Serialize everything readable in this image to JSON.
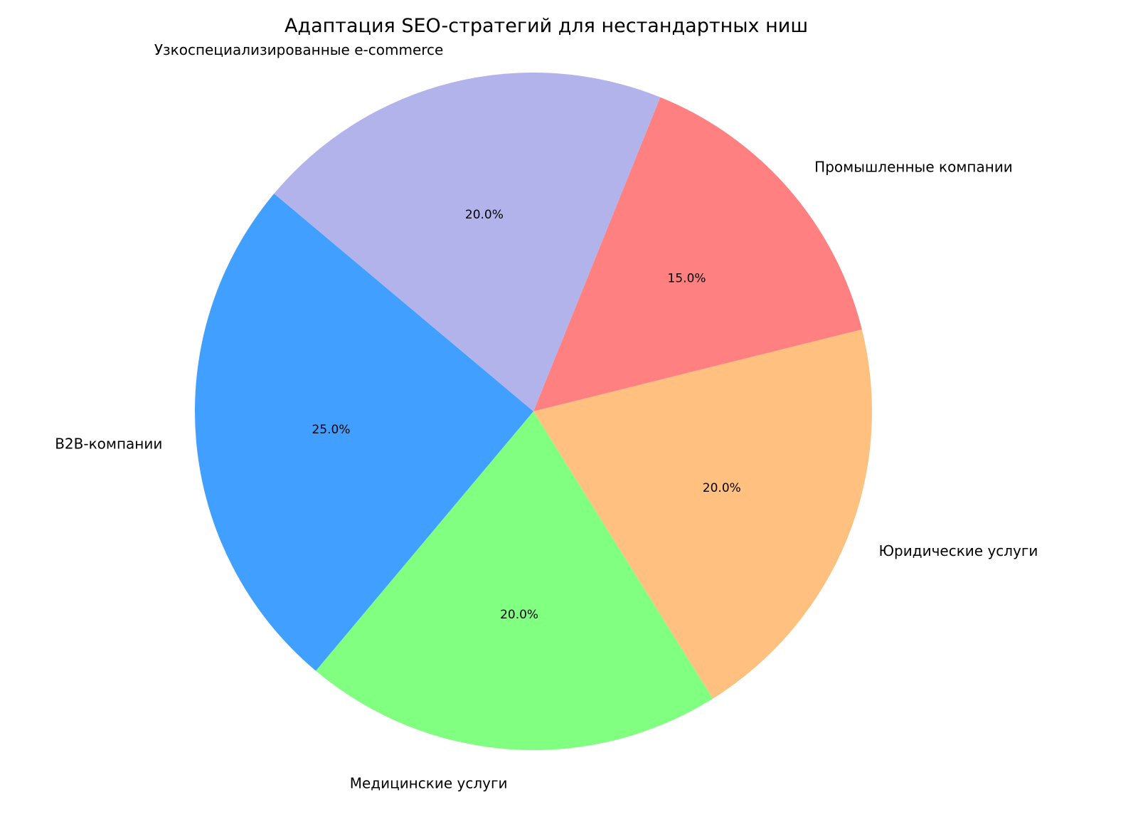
{
  "chart_data": {
    "type": "pie",
    "title": "Адаптация SEO-стратегий для нестандартных ниш",
    "categories": [
      "B2B-компании",
      "Медицинские услуги",
      "Юридические услуги",
      "Промышленные компании",
      "Узкоспециализированные e-commerce"
    ],
    "values": [
      25,
      20,
      20,
      15,
      20
    ],
    "percent_labels": [
      "25.0%",
      "20.0%",
      "20.0%",
      "15.0%",
      "20.0%"
    ],
    "colors": [
      "#409FFF",
      "#80FF80",
      "#FFC080",
      "#FF8080",
      "#B3B3EC"
    ],
    "start_angle": 140,
    "direction": "counterclockwise"
  }
}
